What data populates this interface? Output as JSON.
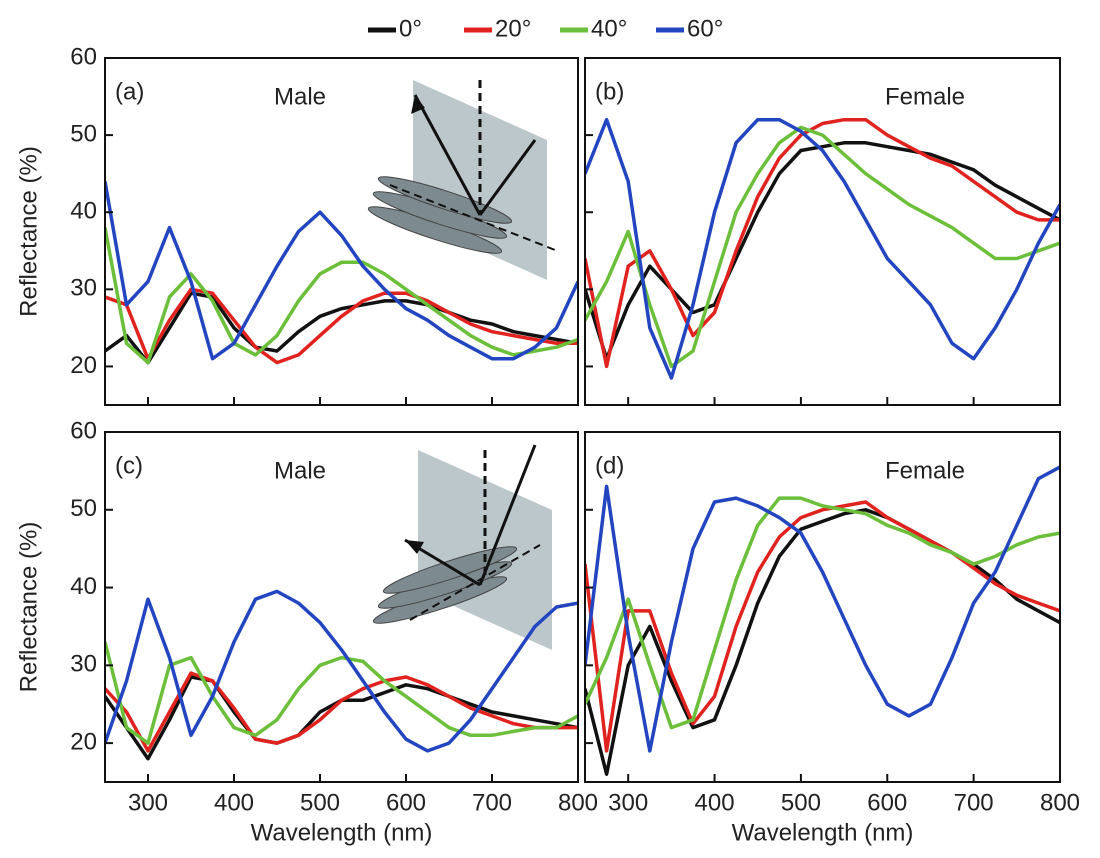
{
  "legend": [
    {
      "name": "0°",
      "color": "#111111"
    },
    {
      "name": "20°",
      "color": "#e0231f"
    },
    {
      "name": "40°",
      "color": "#6cbf3a"
    },
    {
      "name": "60°",
      "color": "#2346c0"
    }
  ],
  "chart_data": [
    {
      "type": "line",
      "label": "(a)",
      "title": "Male",
      "ylabel": "Reflectance (%)",
      "x": [
        250,
        275,
        300,
        325,
        350,
        375,
        400,
        425,
        450,
        475,
        500,
        525,
        550,
        575,
        600,
        625,
        650,
        675,
        700,
        725,
        750,
        775,
        800
      ],
      "series": [
        {
          "color": "#111111",
          "values": [
            22,
            24,
            20.5,
            25,
            29.5,
            29,
            25,
            22.5,
            22,
            24.5,
            26.5,
            27.5,
            28,
            28.5,
            28.5,
            28,
            27,
            26,
            25.5,
            24.5,
            24,
            23.5,
            23
          ]
        },
        {
          "color": "#e0231f",
          "values": [
            29,
            28,
            21,
            26,
            30,
            29.5,
            26,
            22.5,
            20.5,
            21.5,
            24,
            26.5,
            28.5,
            29.5,
            29.5,
            28.5,
            27,
            25.5,
            24.5,
            24,
            23.5,
            23,
            23
          ]
        },
        {
          "color": "#6cbf3a",
          "values": [
            38,
            23,
            20.5,
            29,
            32,
            28.5,
            23,
            21.5,
            24,
            28.5,
            32,
            33.5,
            33.5,
            32,
            30,
            28,
            26,
            24,
            22.5,
            21.5,
            22,
            22.5,
            23.5
          ]
        },
        {
          "color": "#2346c0",
          "values": [
            44,
            28,
            31,
            38,
            31,
            21,
            23,
            28,
            33,
            37.5,
            40,
            37,
            33,
            30,
            27.5,
            26,
            24,
            22.5,
            21,
            21,
            22.5,
            25,
            31
          ]
        }
      ],
      "xlim": [
        250,
        800
      ],
      "ylim": [
        15,
        60
      ],
      "xticks": [
        300,
        400,
        500,
        600,
        700,
        800
      ],
      "yticks": [
        20,
        30,
        40,
        50,
        60
      ]
    },
    {
      "type": "line",
      "label": "(b)",
      "title": "Female",
      "x": [
        250,
        275,
        300,
        325,
        350,
        375,
        400,
        425,
        450,
        475,
        500,
        525,
        550,
        575,
        600,
        625,
        650,
        675,
        700,
        725,
        750,
        775,
        800
      ],
      "series": [
        {
          "color": "#111111",
          "values": [
            30,
            21,
            28,
            33,
            30,
            27,
            28,
            34,
            40,
            45,
            48,
            48.5,
            49,
            49,
            48.5,
            48,
            47.5,
            46.5,
            45.5,
            43.5,
            42,
            40.5,
            39
          ]
        },
        {
          "color": "#e0231f",
          "values": [
            34,
            20,
            33,
            35,
            30,
            24,
            27,
            35,
            42,
            47,
            50,
            51.5,
            52,
            52,
            50,
            48.5,
            47,
            46,
            44,
            42,
            40,
            39,
            39
          ]
        },
        {
          "color": "#6cbf3a",
          "values": [
            26,
            31,
            37.5,
            28,
            20,
            22,
            31,
            40,
            45,
            49,
            51,
            50,
            47.5,
            45,
            43,
            41,
            39.5,
            38,
            36,
            34,
            34,
            35,
            36
          ]
        },
        {
          "color": "#2346c0",
          "values": [
            45,
            52,
            44,
            25,
            18.5,
            28,
            40,
            49,
            52,
            52,
            50.5,
            48,
            44,
            39,
            34,
            31,
            28,
            23,
            21,
            25,
            30,
            36,
            41
          ]
        }
      ],
      "xlim": [
        250,
        800
      ],
      "ylim": [
        15,
        60
      ],
      "xticks": [
        300,
        400,
        500,
        600,
        700,
        800
      ],
      "yticks": [
        20,
        30,
        40,
        50,
        60
      ]
    },
    {
      "type": "line",
      "label": "(c)",
      "title": "Male",
      "ylabel": "Reflectance (%)",
      "xlabel": "Wavelength (nm)",
      "x": [
        250,
        275,
        300,
        325,
        350,
        375,
        400,
        425,
        450,
        475,
        500,
        525,
        550,
        575,
        600,
        625,
        650,
        675,
        700,
        725,
        750,
        775,
        800
      ],
      "series": [
        {
          "color": "#111111",
          "values": [
            26,
            22,
            18,
            23,
            28.5,
            28,
            24,
            20.5,
            20,
            21,
            24,
            25.5,
            25.5,
            26.5,
            27.5,
            27,
            26,
            25,
            24,
            23.5,
            23,
            22.5,
            22
          ]
        },
        {
          "color": "#e0231f",
          "values": [
            27,
            24,
            19,
            24,
            29,
            28,
            24.5,
            20.5,
            20,
            21,
            23,
            25.5,
            27,
            28,
            28.5,
            27.5,
            26,
            24.5,
            23.5,
            22.5,
            22,
            22,
            22
          ]
        },
        {
          "color": "#6cbf3a",
          "values": [
            33,
            22,
            20,
            30,
            31,
            26,
            22,
            21,
            23,
            27,
            30,
            31,
            30.5,
            28,
            26,
            24,
            22,
            21,
            21,
            21.5,
            22,
            22,
            23.5
          ]
        },
        {
          "color": "#2346c0",
          "values": [
            20,
            28,
            38.5,
            31,
            21,
            26,
            33,
            38.5,
            39.5,
            38,
            35.5,
            32,
            28,
            24,
            20.5,
            19,
            20,
            23,
            27,
            31,
            35,
            37.5,
            38
          ]
        }
      ],
      "xlim": [
        250,
        800
      ],
      "ylim": [
        15,
        60
      ],
      "xticks": [
        300,
        400,
        500,
        600,
        700,
        800
      ],
      "yticks": [
        20,
        30,
        40,
        50,
        60
      ]
    },
    {
      "type": "line",
      "label": "(d)",
      "title": "Female",
      "xlabel": "Wavelength (nm)",
      "x": [
        250,
        275,
        300,
        325,
        350,
        375,
        400,
        425,
        450,
        475,
        500,
        525,
        550,
        575,
        600,
        625,
        650,
        675,
        700,
        725,
        750,
        775,
        800
      ],
      "series": [
        {
          "color": "#111111",
          "values": [
            27,
            16,
            30,
            35,
            28,
            22,
            23,
            30,
            38,
            44,
            47.5,
            48.5,
            49.5,
            50,
            49,
            47.5,
            46,
            44.5,
            43,
            41,
            38.5,
            37,
            35.5
          ]
        },
        {
          "color": "#e0231f",
          "values": [
            43,
            19,
            37,
            37,
            29,
            22.5,
            26,
            35,
            42,
            46.5,
            49,
            50,
            50.5,
            51,
            49,
            47.5,
            46,
            44.5,
            42.5,
            40.5,
            39,
            38,
            37
          ]
        },
        {
          "color": "#6cbf3a",
          "values": [
            25,
            31,
            38.5,
            30,
            22,
            23,
            32,
            41,
            48,
            51.5,
            51.5,
            50.5,
            50,
            49.5,
            48,
            47,
            45.5,
            44.5,
            43,
            44,
            45.5,
            46.5,
            47
          ]
        },
        {
          "color": "#2346c0",
          "values": [
            30,
            53,
            34,
            19,
            33,
            45,
            51,
            51.5,
            50.5,
            49,
            47,
            42,
            36,
            30,
            25,
            23.5,
            25,
            31,
            38,
            42,
            48,
            54,
            55.5
          ]
        }
      ],
      "xlim": [
        250,
        800
      ],
      "ylim": [
        15,
        60
      ],
      "xticks": [
        300,
        400,
        500,
        600,
        700,
        800
      ],
      "yticks": [
        20,
        30,
        40,
        50,
        60
      ]
    }
  ]
}
